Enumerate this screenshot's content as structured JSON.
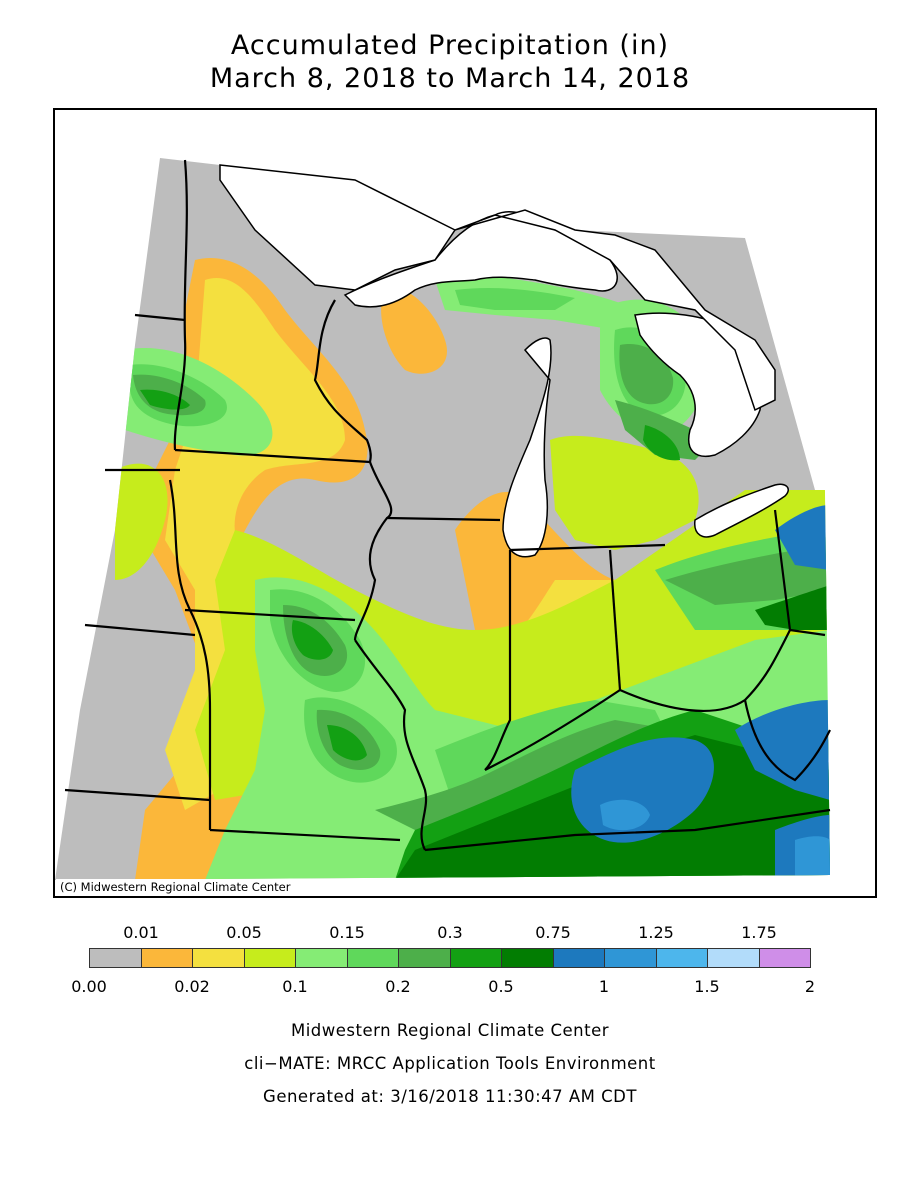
{
  "title": {
    "line1": "Accumulated Precipitation (in)",
    "line2": "March 8, 2018 to March 14, 2018"
  },
  "map": {
    "credit": "(C) Midwestern Regional Climate Center",
    "region": "Upper Midwest / Great Lakes",
    "background_color": "#bdbdbd",
    "lake_color": "#ffffff",
    "border_color": "#000000"
  },
  "legend": {
    "upper_labels": [
      "0.01",
      "0.05",
      "0.15",
      "0.3",
      "0.75",
      "1.25",
      "1.75"
    ],
    "lower_labels": [
      "0.00",
      "0.02",
      "0.1",
      "0.2",
      "0.5",
      "1",
      "1.5",
      "2"
    ],
    "bins": [
      {
        "range": "0.00-0.01",
        "color": "#bdbdbd"
      },
      {
        "range": "0.01-0.02",
        "color": "#fbb73a"
      },
      {
        "range": "0.02-0.05",
        "color": "#f4e03f"
      },
      {
        "range": "0.05-0.1",
        "color": "#c6ec1c"
      },
      {
        "range": "0.1-0.15",
        "color": "#85ec75"
      },
      {
        "range": "0.15-0.2",
        "color": "#5fd85b"
      },
      {
        "range": "0.2-0.3",
        "color": "#4daf4a"
      },
      {
        "range": "0.3-0.5",
        "color": "#13a013"
      },
      {
        "range": "0.5-0.75",
        "color": "#027d02"
      },
      {
        "range": "0.75-1",
        "color": "#1d79be"
      },
      {
        "range": "1-1.25",
        "color": "#2f96d6"
      },
      {
        "range": "1.25-1.5",
        "color": "#4db6ec"
      },
      {
        "range": "1.5-1.75",
        "color": "#b2dcfa"
      },
      {
        "range": "1.75-2",
        "color": "#cf8ee8"
      }
    ]
  },
  "footer": {
    "line1": "Midwestern Regional Climate Center",
    "line2": "cli−MATE: MRCC Application Tools Environment",
    "line3": "Generated at: 3/16/2018 11:30:47 AM CDT"
  }
}
